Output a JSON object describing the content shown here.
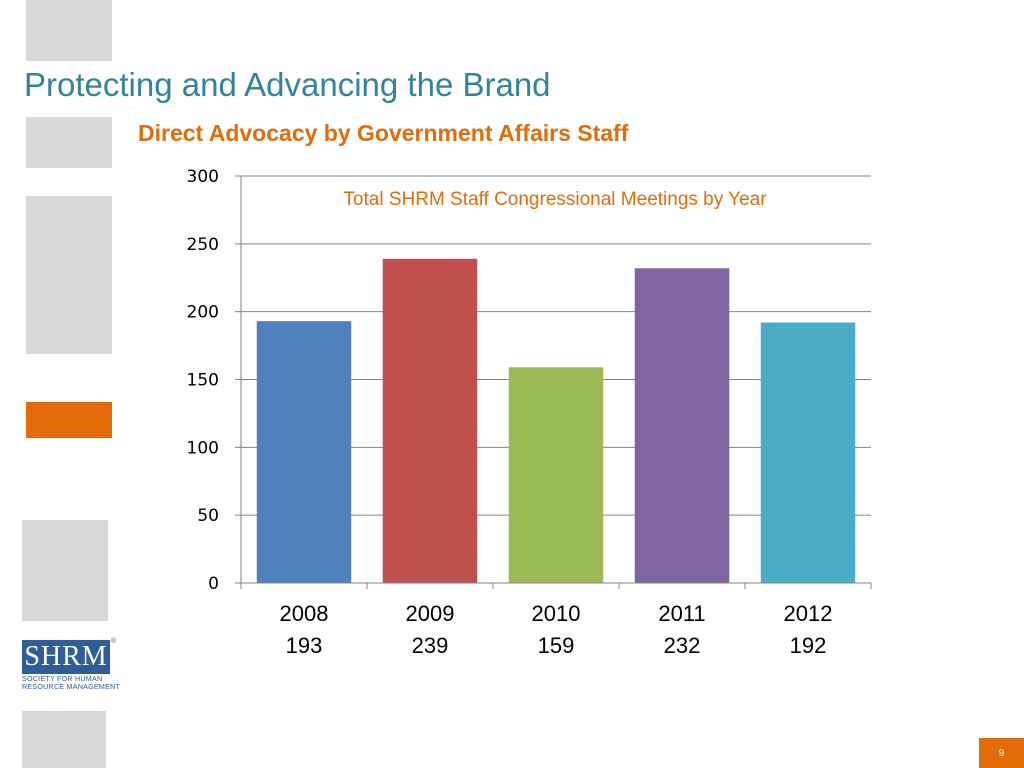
{
  "slide": {
    "title": "Protecting and Advancing the Brand",
    "subtitle": "Direct Advocacy by Government Affairs Staff",
    "page_number": "9",
    "title_color": "#31849b",
    "accent_color": "#e36c09"
  },
  "logo": {
    "mark": "SHRM",
    "registered": "®",
    "line1": "SOCIETY FOR HUMAN",
    "line2": "RESOURCE MANAGEMENT"
  },
  "chart_data": {
    "type": "bar",
    "title": "Total SHRM Staff Congressional Meetings by Year",
    "categories": [
      "2008",
      "2009",
      "2010",
      "2011",
      "2012"
    ],
    "category_values_text": [
      "193",
      "239",
      "159",
      "232",
      "192"
    ],
    "values": [
      193,
      239,
      159,
      232,
      192
    ],
    "colors": [
      "#4f81bd",
      "#c0504d",
      "#9bbb59",
      "#8064a2",
      "#4bacc6"
    ],
    "ylim": [
      0,
      300
    ],
    "yticks": [
      "0",
      "50",
      "100",
      "150",
      "200",
      "250",
      "300"
    ],
    "grid": true,
    "legend": false,
    "title_color": "#e36c09"
  }
}
